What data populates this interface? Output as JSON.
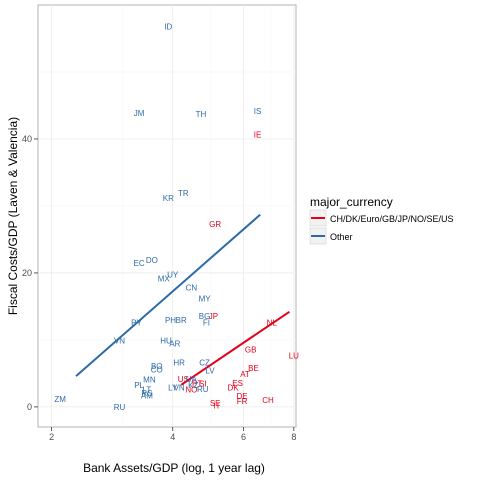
{
  "chart_data": {
    "type": "scatter",
    "xlabel": "Bank Assets/GDP (log, 1 year lag)",
    "ylabel": "Fiscal Costs/GDP (Laven & Valencia)",
    "xlim": [
      1.85,
      8.1
    ],
    "ylim": [
      -3,
      60
    ],
    "x_ticks": [
      2,
      4,
      6,
      8
    ],
    "y_ticks": [
      0,
      20,
      40
    ],
    "x_scale": "log",
    "grid": true,
    "legend": {
      "title": "major_currency",
      "placement": "right",
      "entries": [
        {
          "label": "CH/DK/Euro/GB/JP/NO/SE/US",
          "color": "#e3001b"
        },
        {
          "label": "Other",
          "color": "#2d6aa8"
        }
      ]
    },
    "series": [
      {
        "name": "CH/DK/Euro/GB/JP/NO/SE/US",
        "color": "#e3001b",
        "points": [
          {
            "label": "IE",
            "x": 6.5,
            "y": 40.7
          },
          {
            "label": "GR",
            "x": 5.1,
            "y": 27.3
          },
          {
            "label": "NL",
            "x": 7.05,
            "y": 12.6
          },
          {
            "label": "JP",
            "x": 5.05,
            "y": 13.6
          },
          {
            "label": "LU",
            "x": 8.0,
            "y": 7.7
          },
          {
            "label": "GB",
            "x": 6.25,
            "y": 8.6
          },
          {
            "label": "BE",
            "x": 6.35,
            "y": 5.8
          },
          {
            "label": "AT",
            "x": 6.05,
            "y": 4.9
          },
          {
            "label": "ES",
            "x": 5.8,
            "y": 3.6
          },
          {
            "label": "DK",
            "x": 5.65,
            "y": 2.9
          },
          {
            "label": "DE",
            "x": 5.95,
            "y": 1.6
          },
          {
            "label": "FR",
            "x": 5.95,
            "y": 0.9
          },
          {
            "label": "CH",
            "x": 6.9,
            "y": 1.0
          },
          {
            "label": "SE",
            "x": 5.1,
            "y": 0.6
          },
          {
            "label": "IT",
            "x": 5.15,
            "y": 0.2
          },
          {
            "label": "US",
            "x": 4.25,
            "y": 4.2
          },
          {
            "label": "SI",
            "x": 4.75,
            "y": 3.5
          },
          {
            "label": "PT",
            "x": 4.6,
            "y": 3.5
          },
          {
            "label": "NO",
            "x": 4.45,
            "y": 2.6
          }
        ],
        "trend": {
          "x": [
            4.2,
            7.8
          ],
          "y": [
            3.3,
            14.2
          ]
        }
      },
      {
        "name": "Other",
        "color": "#2d6aa8",
        "points": [
          {
            "label": "ID",
            "x": 3.9,
            "y": 56.8
          },
          {
            "label": "JM",
            "x": 3.3,
            "y": 43.9
          },
          {
            "label": "TH",
            "x": 4.7,
            "y": 43.7
          },
          {
            "label": "IS",
            "x": 6.5,
            "y": 44.2
          },
          {
            "label": "TR",
            "x": 4.25,
            "y": 31.9
          },
          {
            "label": "KR",
            "x": 3.9,
            "y": 31.2
          },
          {
            "label": "DO",
            "x": 3.55,
            "y": 21.9
          },
          {
            "label": "EC",
            "x": 3.3,
            "y": 21.5
          },
          {
            "label": "UY",
            "x": 4.0,
            "y": 19.8
          },
          {
            "label": "MX",
            "x": 3.8,
            "y": 19.2
          },
          {
            "label": "CN",
            "x": 4.45,
            "y": 17.8
          },
          {
            "label": "MY",
            "x": 4.8,
            "y": 16.2
          },
          {
            "label": "BG",
            "x": 4.8,
            "y": 13.6
          },
          {
            "label": "FI",
            "x": 4.85,
            "y": 12.6
          },
          {
            "label": "PY",
            "x": 3.25,
            "y": 12.6
          },
          {
            "label": "PH",
            "x": 3.95,
            "y": 13.0
          },
          {
            "label": "BR",
            "x": 4.2,
            "y": 13.0
          },
          {
            "label": "VN",
            "x": 2.95,
            "y": 9.9
          },
          {
            "label": "HU",
            "x": 3.85,
            "y": 9.9
          },
          {
            "label": "AR",
            "x": 4.05,
            "y": 9.5
          },
          {
            "label": "HR",
            "x": 4.15,
            "y": 6.6
          },
          {
            "label": "CZ",
            "x": 4.8,
            "y": 6.6
          },
          {
            "label": "LV",
            "x": 4.95,
            "y": 5.4
          },
          {
            "label": "BO",
            "x": 3.65,
            "y": 6.1
          },
          {
            "label": "CO",
            "x": 3.65,
            "y": 5.6
          },
          {
            "label": "MN",
            "x": 3.5,
            "y": 4.1
          },
          {
            "label": "PL",
            "x": 3.3,
            "y": 3.3
          },
          {
            "label": "LT",
            "x": 3.45,
            "y": 2.6
          },
          {
            "label": "RS",
            "x": 3.45,
            "y": 2.1
          },
          {
            "label": "AM",
            "x": 3.45,
            "y": 1.7
          },
          {
            "label": "UA",
            "x": 4.45,
            "y": 4.2
          },
          {
            "label": "KZ",
            "x": 4.5,
            "y": 3.3
          },
          {
            "label": "LY",
            "x": 4.0,
            "y": 2.9
          },
          {
            "label": "VN",
            "x": 4.15,
            "y": 2.9
          },
          {
            "label": "RU",
            "x": 4.75,
            "y": 2.7
          },
          {
            "label": "ZM",
            "x": 2.1,
            "y": 1.2
          },
          {
            "label": "RU",
            "x": 2.95,
            "y": 0.0
          }
        ],
        "trend": {
          "x": [
            2.3,
            6.6
          ],
          "y": [
            4.6,
            28.7
          ]
        }
      }
    ]
  }
}
